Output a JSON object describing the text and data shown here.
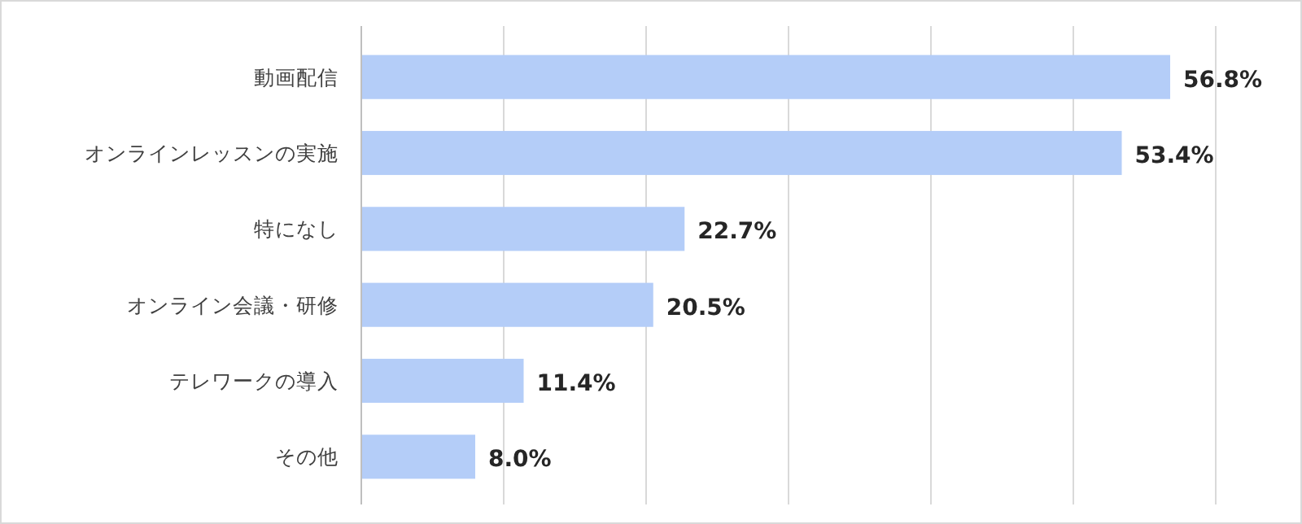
{
  "chart_data": {
    "type": "bar",
    "orientation": "horizontal",
    "categories": [
      "動画配信",
      "オンラインレッスンの実施",
      "特になし",
      "オンライン会議・研修",
      "テレワークの導入",
      "その他"
    ],
    "values": [
      56.8,
      53.4,
      22.7,
      20.5,
      11.4,
      8.0
    ],
    "value_labels": [
      "56.8%",
      "53.4%",
      "22.7%",
      "20.5%",
      "11.4%",
      "8.0%"
    ],
    "color": "#b4cdf8",
    "xlim": [
      0,
      60
    ],
    "xticks": [
      {
        "value": 0,
        "label": null
      },
      {
        "value": 10,
        "label": null
      },
      {
        "value": 20,
        "label": null
      },
      {
        "value": 30,
        "label": null
      },
      {
        "value": 40,
        "label": null
      },
      {
        "value": 50,
        "label": null
      },
      {
        "value": 60,
        "label": null
      }
    ],
    "grid": "x",
    "tick_labels": "y"
  }
}
